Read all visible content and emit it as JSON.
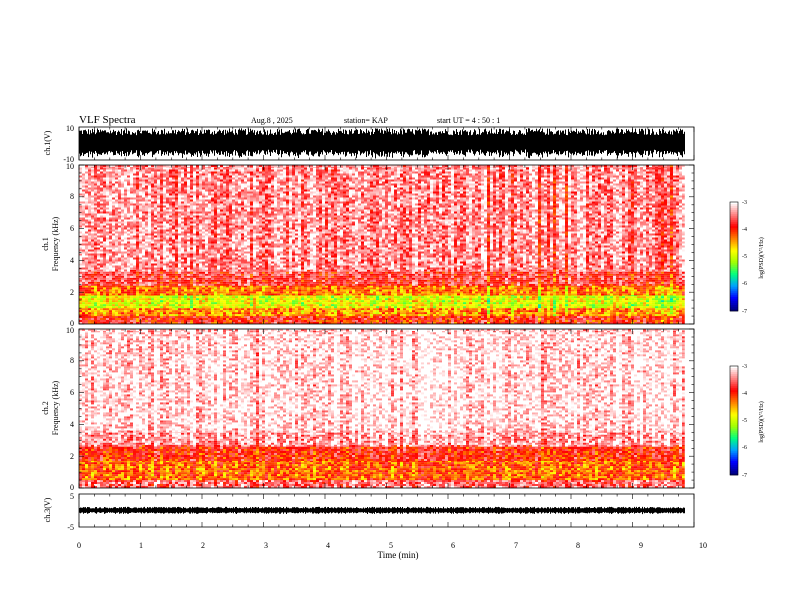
{
  "chart_data": {
    "type": "heatmap",
    "header": {
      "title": "VLF Spectra",
      "date": "Aug.8 , 2025",
      "station": "station= KAP",
      "start": "start UT = 4 : 50 : 1"
    },
    "time_axis": {
      "label": "Time (min)",
      "range": [
        0,
        10
      ],
      "ticks": [
        "0",
        "1",
        "2",
        "3",
        "4",
        "5",
        "6",
        "7",
        "8",
        "9",
        "10"
      ]
    },
    "panels": [
      {
        "id": "ch1-waveform",
        "type": "waveform",
        "ylabel": "ch.1(V)",
        "yrange": [
          -10,
          10
        ],
        "ticks": [
          "10",
          "-10"
        ],
        "data_end_min": 9.85
      },
      {
        "id": "ch1-spectrogram",
        "type": "spectrogram",
        "ylabel_top": "ch.1",
        "ylabel": "Frequency (kHz)",
        "yrange": [
          0,
          10
        ],
        "ticks": [
          "0",
          "2",
          "4",
          "6",
          "8",
          "10"
        ],
        "data_end_min": 9.85,
        "bands_khz": [
          {
            "f0": 0.0,
            "f1": 0.5,
            "level": -3.9
          },
          {
            "f0": 0.5,
            "f1": 1.0,
            "level": -4.4
          },
          {
            "f0": 1.0,
            "f1": 1.8,
            "level": -4.9
          },
          {
            "f0": 1.8,
            "f1": 2.4,
            "level": -4.3
          },
          {
            "f0": 2.4,
            "f1": 3.3,
            "level": -3.7
          },
          {
            "f0": 3.3,
            "f1": 10.0,
            "level": -3.35
          }
        ]
      },
      {
        "id": "ch2-spectrogram",
        "type": "spectrogram",
        "ylabel_top": "ch.2",
        "ylabel": "Frequency (kHz)",
        "yrange": [
          0,
          10
        ],
        "ticks": [
          "0",
          "2",
          "4",
          "6",
          "8",
          "10"
        ],
        "data_end_min": 9.85,
        "bands_khz": [
          {
            "f0": 0.0,
            "f1": 0.5,
            "level": -3.5
          },
          {
            "f0": 0.5,
            "f1": 1.7,
            "level": -4.2
          },
          {
            "f0": 1.7,
            "f1": 2.6,
            "level": -3.9
          },
          {
            "f0": 2.6,
            "f1": 3.5,
            "level": -3.3
          },
          {
            "f0": 3.5,
            "f1": 10.0,
            "level": -3.05
          }
        ]
      },
      {
        "id": "ch3-waveform",
        "type": "waveform",
        "ylabel": "ch.3(V)",
        "yrange": [
          -5,
          5
        ],
        "ticks": [
          "5",
          "-5"
        ],
        "data_end_min": 9.85
      }
    ],
    "colorbar": {
      "label": "log(PSD)(V²/Hz)",
      "range": [
        -7,
        -3
      ],
      "ticks": [
        "-3",
        "-4",
        "-5",
        "-6",
        "-7"
      ],
      "colors": [
        "#000080",
        "#0000ff",
        "#00a0ff",
        "#00ff80",
        "#a0ff00",
        "#ffff00",
        "#ff8000",
        "#ff0000",
        "#ff8080",
        "#ffffff"
      ]
    }
  }
}
